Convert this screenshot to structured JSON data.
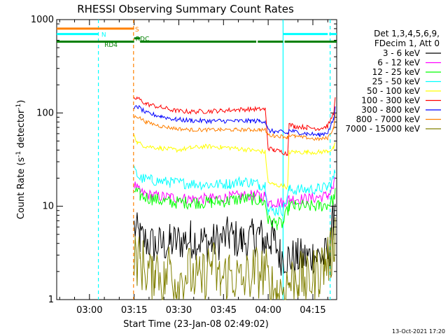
{
  "chart_data": {
    "type": "line",
    "title": "RHESSI Observing Summary Count Rates",
    "xlabel": "Start Time (23-Jan-08 02:49:02)",
    "ylabel_prefix": "Count Rate (s",
    "ylabel_sup": "-1",
    "ylabel_suffix": " detector",
    "ylabel_end": ")",
    "x_unit": "minutes since 02:49:02",
    "xlim": [
      0,
      94
    ],
    "ylim": [
      1,
      1000
    ],
    "yscale": "log",
    "x_ticks": [
      {
        "x": 11,
        "label": "03:00"
      },
      {
        "x": 26,
        "label": "03:15"
      },
      {
        "x": 41,
        "label": "03:30"
      },
      {
        "x": 56,
        "label": "03:45"
      },
      {
        "x": 71,
        "label": "04:00"
      },
      {
        "x": 86,
        "label": "04:15"
      }
    ],
    "y_ticks": [
      {
        "y": 1,
        "label": "1"
      },
      {
        "y": 10,
        "label": "10"
      },
      {
        "y": 100,
        "label": "100"
      },
      {
        "y": 1000,
        "label": "1000"
      }
    ],
    "legend": {
      "header": [
        "Det 1,3,4,5,6,9,",
        "FDecim 1, Att 0"
      ],
      "placement": "right"
    },
    "series": [
      {
        "name": "3 - 6 keV",
        "color": "#000000",
        "x": [
          0,
          25.8,
          26,
          28,
          33,
          38,
          45,
          52,
          58,
          62,
          66,
          67,
          68,
          69,
          70,
          71,
          72,
          73,
          75,
          78,
          81,
          84,
          86,
          89,
          91,
          92,
          92.8,
          93.5
        ],
        "y": [
          null,
          null,
          6,
          4.5,
          3.8,
          4,
          4.5,
          4,
          4.8,
          4.2,
          4.5,
          4.8,
          5,
          4.5,
          4,
          4.5,
          4.5,
          4.2,
          3,
          2.8,
          2.8,
          2.8,
          3,
          2.8,
          3,
          4,
          7,
          12
        ]
      },
      {
        "name": "6 - 12 keV",
        "color": "#ff00ff",
        "x": [
          0,
          25.8,
          26,
          28,
          32,
          38,
          45,
          52,
          58,
          62,
          66,
          68,
          70,
          71,
          74,
          76,
          78,
          80,
          84,
          88,
          91,
          93,
          93.5
        ],
        "y": [
          null,
          null,
          17,
          14,
          13,
          12.5,
          12,
          12,
          12.5,
          13,
          13,
          13,
          13,
          11,
          11,
          11,
          12,
          12,
          12,
          12.5,
          13,
          16,
          20
        ]
      },
      {
        "name": "12 - 25 keV",
        "color": "#00ff00",
        "x": [
          0,
          25.8,
          26,
          28,
          32,
          38,
          45,
          52,
          58,
          62,
          66,
          68,
          70,
          71,
          74,
          76,
          78,
          80,
          84,
          88,
          91,
          93,
          93.5
        ],
        "y": [
          null,
          null,
          15,
          13,
          12,
          11,
          11,
          11,
          11.5,
          12,
          12,
          11.5,
          11,
          7,
          6.5,
          6.5,
          10,
          10,
          10,
          10,
          10.5,
          12,
          15
        ]
      },
      {
        "name": "25 - 50 keV",
        "color": "#00ffff",
        "x": [
          0,
          25.8,
          26,
          28,
          32,
          38,
          45,
          52,
          58,
          62,
          66,
          68,
          70,
          71,
          74,
          76,
          78,
          80,
          84,
          88,
          91,
          93,
          93.5
        ],
        "y": [
          null,
          null,
          24,
          20,
          19,
          18,
          17.5,
          17,
          17.5,
          18.5,
          18,
          17,
          17,
          9,
          9,
          9,
          15,
          15,
          15,
          15.5,
          16,
          20,
          24
        ]
      },
      {
        "name": "50 - 100 keV",
        "color": "#ffff00",
        "x": [
          0,
          25.8,
          26,
          27,
          30,
          35,
          40,
          45,
          50,
          55,
          60,
          65,
          68,
          70,
          71,
          73,
          76,
          77.5,
          78,
          80,
          84,
          88,
          91,
          93,
          93.5
        ],
        "y": [
          null,
          null,
          60,
          48,
          44,
          42,
          40,
          42,
          44,
          43,
          42,
          40,
          39,
          38,
          18,
          17,
          16.5,
          16,
          38,
          38,
          38,
          38,
          39,
          42,
          46
        ]
      },
      {
        "name": "100 - 300 keV",
        "color": "#ff0000",
        "x": [
          0,
          25.8,
          26,
          27,
          30,
          35,
          40,
          45,
          50,
          55,
          60,
          65,
          68,
          70,
          71,
          73,
          76,
          77.5,
          78,
          80,
          84,
          88,
          91,
          93,
          93.5
        ],
        "y": [
          null,
          null,
          140,
          145,
          125,
          115,
          105,
          103,
          104,
          106,
          108,
          110,
          110,
          110,
          42,
          40,
          38,
          36,
          75,
          72,
          70,
          68,
          72,
          100,
          140
        ]
      },
      {
        "name": "300 - 800 keV",
        "color": "#0000ff",
        "x": [
          0,
          25.8,
          26,
          27,
          30,
          35,
          40,
          45,
          50,
          55,
          60,
          65,
          68,
          70,
          71,
          73,
          76,
          77.5,
          78,
          80,
          84,
          88,
          91,
          93,
          93.5
        ],
        "y": [
          null,
          null,
          110,
          118,
          100,
          92,
          85,
          83,
          82,
          82,
          82,
          82,
          82,
          82,
          65,
          63,
          62,
          60,
          65,
          63,
          60,
          58,
          62,
          85,
          115
        ]
      },
      {
        "name": "800 - 7000 keV",
        "color": "#ff8000",
        "x": [
          0,
          25.8,
          26,
          27,
          30,
          35,
          40,
          45,
          50,
          55,
          60,
          65,
          68,
          70,
          71,
          73,
          76,
          77.5,
          78,
          80,
          84,
          88,
          91,
          93,
          93.5
        ],
        "y": [
          null,
          null,
          90,
          92,
          80,
          72,
          68,
          66,
          66,
          66,
          66,
          66,
          66,
          66,
          58,
          57,
          56,
          55,
          58,
          56,
          54,
          52,
          54,
          70,
          95
        ]
      },
      {
        "name": "7000 - 15000 keV",
        "color": "#808000",
        "x": [
          0,
          25.8,
          26,
          28,
          31,
          32,
          33,
          36,
          38,
          40,
          44,
          48,
          52,
          55,
          58,
          62,
          66,
          70,
          71,
          74,
          78,
          81,
          84,
          86,
          88,
          90,
          92,
          93,
          93.5
        ],
        "y": [
          null,
          null,
          3,
          2.5,
          2,
          1.5,
          2.5,
          1.5,
          2.5,
          1.5,
          2,
          1.5,
          2.5,
          1.5,
          2,
          1.5,
          2,
          2,
          1.5,
          1.2,
          1.5,
          1.8,
          1.5,
          1.8,
          2,
          2.5,
          3,
          4,
          6
        ]
      }
    ],
    "state_bars": [
      {
        "label": "S",
        "color": "#ff8000",
        "y": 800,
        "segments": [
          [
            0,
            26
          ]
        ]
      },
      {
        "label": "N",
        "color": "#00ffff",
        "y": 700,
        "segments": [
          [
            0,
            14
          ],
          [
            76,
            91
          ],
          [
            91.5,
            94
          ]
        ]
      },
      {
        "label": "RD4",
        "color": "#008000",
        "y": 630,
        "segments": [
          [
            26,
            28
          ]
        ]
      },
      {
        "label": "RDC",
        "color": "#008000",
        "y": 580,
        "segments": [
          [
            0,
            26
          ],
          [
            28,
            67
          ],
          [
            67.5,
            76
          ],
          [
            76.5,
            94
          ]
        ]
      }
    ],
    "vertical_markers": [
      {
        "x": 14,
        "color": "#00ffff",
        "style": "dashed"
      },
      {
        "x": 25.8,
        "color": "#ff8000",
        "style": "dashed"
      },
      {
        "x": 76,
        "color": "#00ffff",
        "style": "solid"
      },
      {
        "x": 91.8,
        "color": "#00ffff",
        "style": "dashed"
      }
    ],
    "corner_note": "13-Oct-2021 17:20"
  }
}
